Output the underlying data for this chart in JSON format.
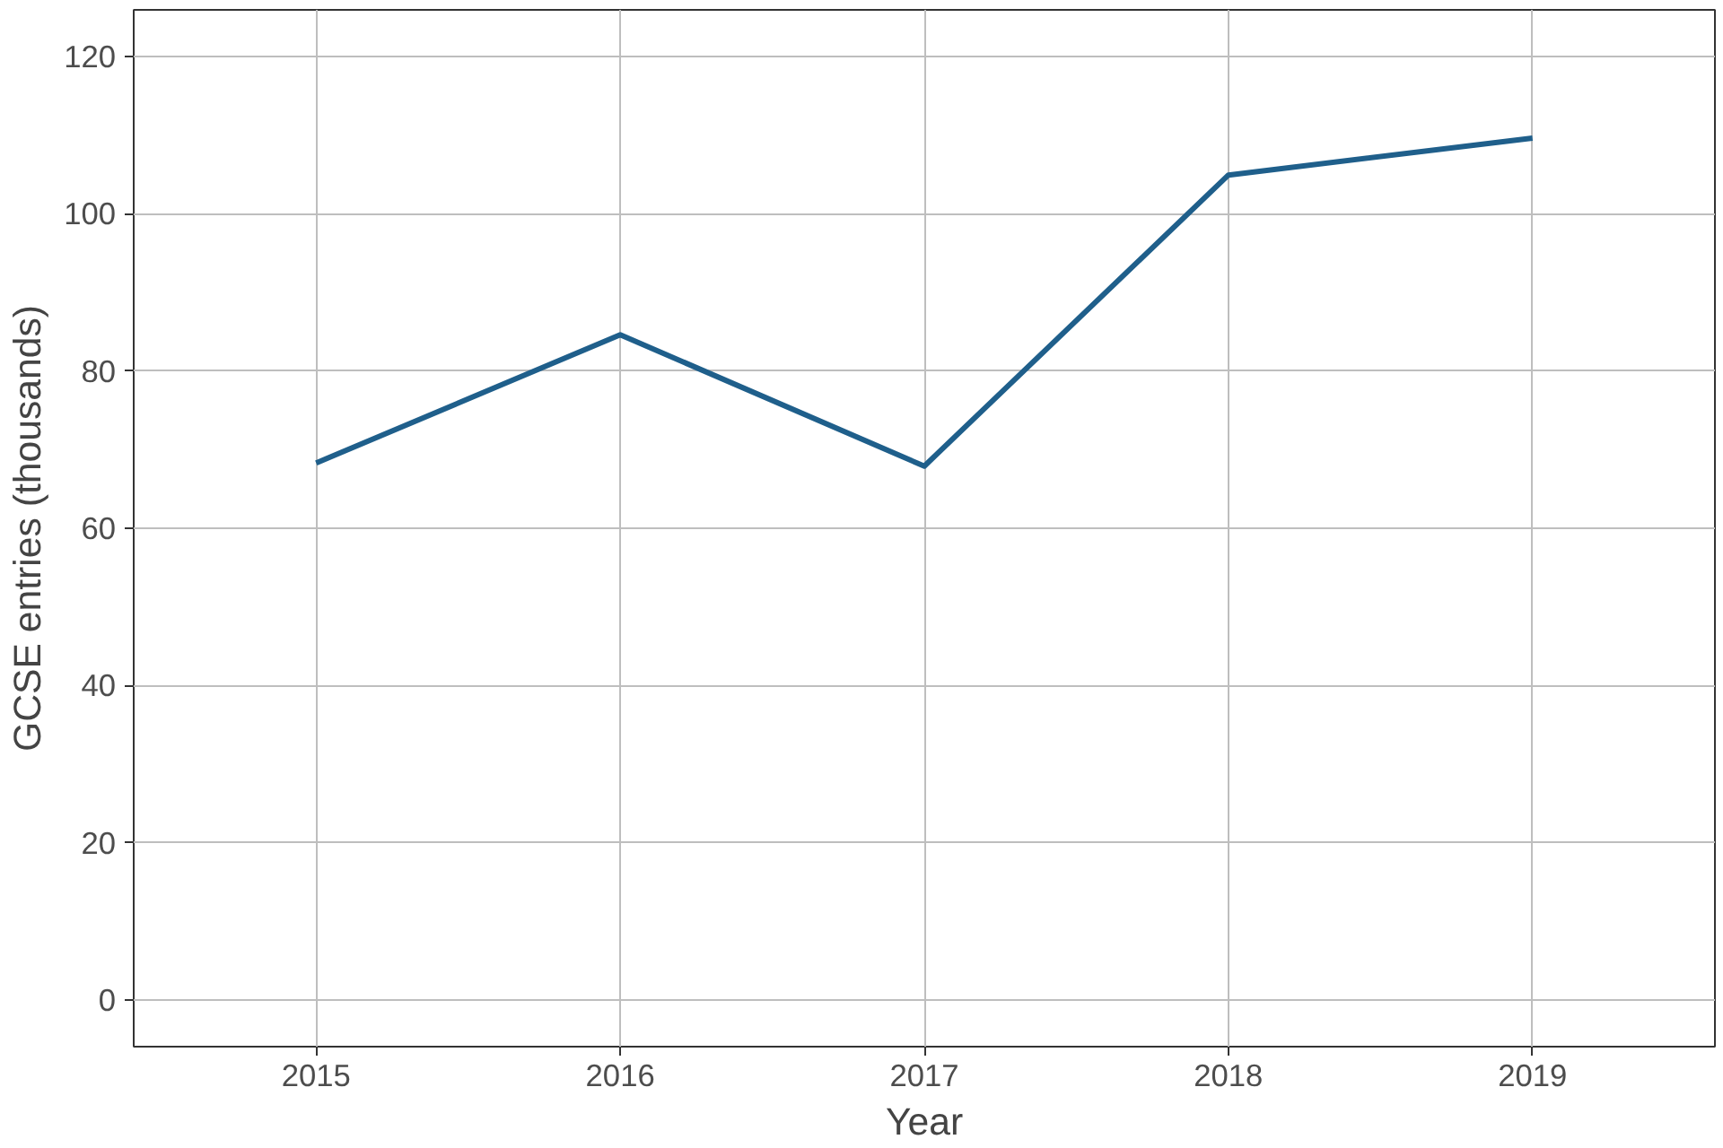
{
  "chart_data": {
    "type": "line",
    "xlabel": "Year",
    "ylabel": "GCSE entries (thousands)",
    "x": [
      2015,
      2016,
      2017,
      2018,
      2019
    ],
    "series": [
      {
        "color": "#1f5f8b",
        "values": [
          68.3,
          84.6,
          67.9,
          104.9,
          109.6
        ]
      }
    ],
    "xlim": [
      2014.4,
      2019.6
    ],
    "ylim": [
      -5.9,
      125.9
    ],
    "xticks": [
      2015,
      2016,
      2017,
      2018,
      2019
    ],
    "yticks": [
      0,
      20,
      40,
      60,
      80,
      100,
      120
    ],
    "grid": true,
    "marker": "none",
    "line_style": "solid"
  }
}
